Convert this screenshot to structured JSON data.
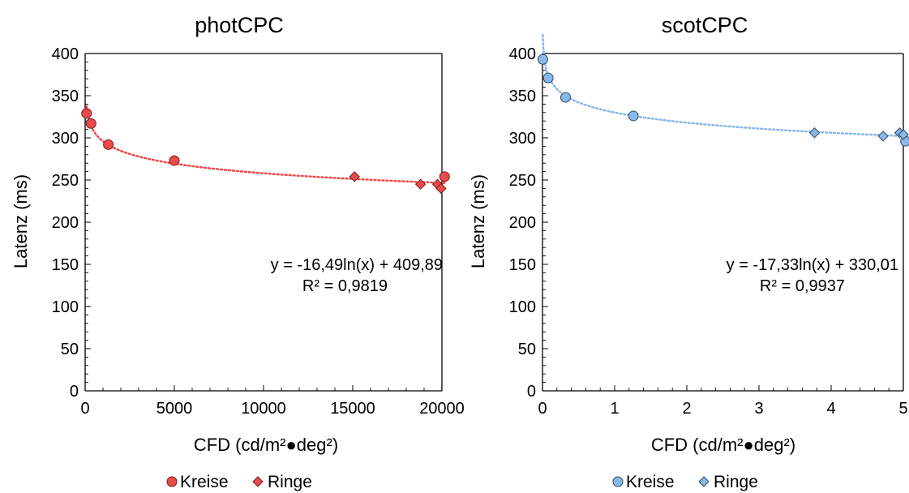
{
  "chart_data": [
    {
      "type": "scatter",
      "title": "photCPC",
      "xlabel": "CFD (cd/m²●deg²)",
      "ylabel": "Latenz (ms)",
      "xlim": [
        0,
        20000
      ],
      "ylim": [
        0,
        400
      ],
      "xticks": [
        "0",
        "5000",
        "10000",
        "15000",
        "20000"
      ],
      "yticks": [
        "0",
        "50",
        "100",
        "150",
        "200",
        "250",
        "300",
        "350",
        "400"
      ],
      "grid": false,
      "legend_position": "bottom",
      "color": "#e94b4b",
      "series": [
        {
          "name": "Kreise",
          "marker": "circle",
          "x": [
            80,
            330,
            1300,
            5000,
            20150
          ],
          "y": [
            329,
            317,
            292,
            273,
            254
          ]
        },
        {
          "name": "Ringe",
          "marker": "diamond",
          "x": [
            15100,
            18800,
            19750,
            19950
          ],
          "y": [
            254,
            245,
            245,
            240
          ]
        }
      ],
      "trendline": {
        "type": "logarithmic",
        "a": -16.49,
        "b": 409.89,
        "style": "dotted"
      },
      "equation_text": "y = -16,49ln(x) + 409,89",
      "r2_text": "R² = 0,9819"
    },
    {
      "type": "scatter",
      "title": "scotCPC",
      "xlabel": "CFD (cd/m²●deg²)",
      "ylabel": "Latenz (ms)",
      "xlim": [
        0,
        5
      ],
      "ylim": [
        0,
        400
      ],
      "xticks": [
        "0",
        "1",
        "2",
        "3",
        "4",
        "5"
      ],
      "yticks": [
        "0",
        "50",
        "100",
        "150",
        "200",
        "250",
        "300",
        "350",
        "400"
      ],
      "grid": false,
      "legend_position": "bottom",
      "color": "#8ab8e8",
      "series": [
        {
          "name": "Kreise",
          "marker": "circle",
          "x": [
            0.005,
            0.08,
            0.32,
            1.26,
            5.03
          ],
          "y": [
            393,
            371,
            348,
            326,
            296
          ]
        },
        {
          "name": "Ringe",
          "marker": "diamond",
          "x": [
            3.77,
            4.72,
            4.95,
            5.0
          ],
          "y": [
            306,
            302,
            306,
            304
          ]
        }
      ],
      "trendline": {
        "type": "logarithmic",
        "a": -17.33,
        "b": 330.01,
        "style": "dotted"
      },
      "equation_text": "y = -17,33ln(x) + 330,01",
      "r2_text": "R² = 0,9937"
    }
  ]
}
